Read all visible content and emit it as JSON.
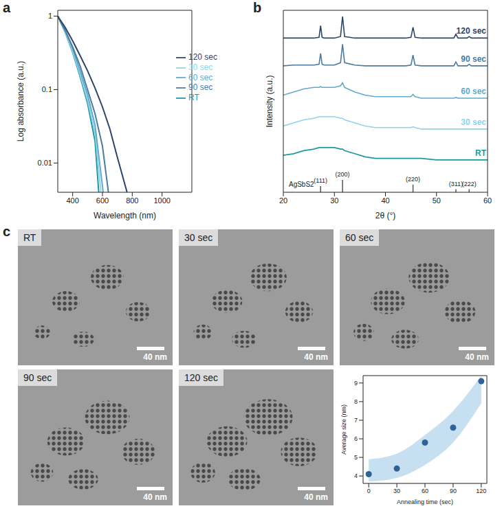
{
  "chart_data": [
    {
      "panel": "a",
      "type": "line",
      "x_label": "Wavelength (nm)",
      "y_label": "Log absorbance (a.u.)",
      "log": "y",
      "xlim": [
        300,
        1200
      ],
      "xticks": [
        400,
        600,
        800,
        1000
      ],
      "ylim": [
        0.004,
        1.2
      ],
      "yticks": [
        0.01,
        0.1,
        1
      ],
      "legend": "right",
      "series": [
        {
          "name": "RT",
          "color": "#1a9aa0",
          "x": [
            300,
            350,
            400,
            450,
            500,
            550,
            575
          ],
          "values": [
            1,
            0.6,
            0.32,
            0.15,
            0.065,
            0.02,
            0.004
          ]
        },
        {
          "name": "30 sec",
          "color": "#8fd3ea",
          "x": [
            300,
            350,
            400,
            450,
            500,
            550,
            590
          ],
          "values": [
            1,
            0.61,
            0.33,
            0.16,
            0.072,
            0.026,
            0.004
          ]
        },
        {
          "name": "60 sec",
          "color": "#62a9cc",
          "x": [
            300,
            350,
            400,
            450,
            500,
            550,
            605
          ],
          "values": [
            1,
            0.63,
            0.36,
            0.18,
            0.085,
            0.033,
            0.004
          ]
        },
        {
          "name": "90 sec",
          "color": "#4d7aa0",
          "x": [
            300,
            350,
            400,
            450,
            500,
            550,
            600,
            640
          ],
          "values": [
            1,
            0.64,
            0.38,
            0.21,
            0.1,
            0.047,
            0.017,
            0.004
          ]
        },
        {
          "name": "120 sec",
          "color": "#2d4468",
          "x": [
            300,
            350,
            400,
            450,
            500,
            550,
            600,
            650,
            700,
            765
          ],
          "values": [
            1,
            0.7,
            0.46,
            0.29,
            0.18,
            0.105,
            0.058,
            0.029,
            0.012,
            0.004
          ]
        }
      ]
    },
    {
      "panel": "b",
      "type": "line",
      "x_label": "2θ (°)",
      "y_label": "Intensity (a.u.)",
      "tick_labels": "x",
      "xlim": [
        20,
        60
      ],
      "xticks": [
        20,
        30,
        40,
        50,
        60
      ],
      "ylim": [
        0,
        118
      ],
      "x": [
        20,
        22,
        24,
        26,
        27,
        27.3,
        27.6,
        28,
        30,
        31.2,
        31.6,
        32,
        34,
        36,
        38,
        40,
        42,
        44,
        45,
        45.4,
        45.8,
        47,
        50,
        53.4,
        53.8,
        54.2,
        56,
        56.4,
        56.8,
        58,
        60
      ],
      "series": [
        {
          "name": "RT",
          "color": "#1a9aa0",
          "values": [
            24,
            25,
            27,
            28,
            29,
            29,
            29,
            29,
            29,
            28,
            28,
            27,
            25,
            23,
            22,
            22,
            22,
            22,
            22,
            22,
            22,
            22,
            21,
            21,
            21,
            21,
            21,
            21,
            21,
            21,
            21
          ]
        },
        {
          "name": "30 sec",
          "color": "#8fd3ea",
          "values": [
            43,
            45,
            47,
            48,
            49,
            49,
            49,
            49,
            49,
            48,
            48,
            47,
            45,
            43,
            42,
            42,
            42,
            42,
            42,
            42.5,
            42,
            41,
            41,
            41,
            41,
            41,
            41,
            41,
            41,
            41,
            41
          ]
        },
        {
          "name": "60 sec",
          "color": "#62a9cc",
          "values": [
            63,
            65,
            67,
            68,
            68,
            68.5,
            68,
            68,
            68,
            69,
            71,
            68,
            65,
            63,
            62,
            62,
            62,
            62,
            62,
            63.5,
            62,
            61,
            61,
            61,
            61.5,
            61,
            61,
            61,
            61,
            61,
            61
          ]
        },
        {
          "name": "90 sec",
          "color": "#4d7aa0",
          "values": [
            82,
            82.5,
            82.5,
            82.5,
            83,
            90,
            83,
            82.5,
            82.5,
            84,
            96,
            84,
            82.5,
            82,
            82,
            82,
            82,
            82,
            82.5,
            89,
            82.5,
            82,
            82,
            82,
            84.5,
            82,
            82,
            83,
            82,
            82,
            82
          ]
        },
        {
          "name": "120 sec",
          "color": "#2d4468",
          "values": [
            100,
            100,
            100,
            100,
            100.5,
            108,
            100.5,
            100,
            100,
            101,
            114,
            101,
            100,
            100,
            100,
            100,
            100,
            100,
            100.5,
            107,
            100.5,
            100,
            100,
            100,
            102.5,
            100,
            100,
            101,
            100,
            100,
            100
          ]
        }
      ],
      "reference": {
        "name": "AgSbS2",
        "x": [
          27.3,
          31.6,
          45.4,
          53.8,
          56.4
        ],
        "labels": [
          "(111)",
          "(200)",
          "(220)",
          "(311)",
          "(222)"
        ],
        "values": [
          4,
          8,
          5,
          2,
          2
        ]
      }
    },
    {
      "type": "scatter",
      "x_label": "Annealing time (sec)",
      "y_label": "Average size (nm)",
      "xlim": [
        -6,
        126
      ],
      "xticks": [
        0,
        30,
        60,
        90,
        120
      ],
      "ylim": [
        3.6,
        9.4
      ],
      "yticks": [
        4,
        5,
        6,
        7,
        8,
        9
      ],
      "color": "#2f6396",
      "x": [
        0,
        30,
        60,
        90,
        120
      ],
      "values": [
        4.1,
        4.4,
        5.8,
        6.6,
        9.1
      ],
      "band_lower": [
        3.7,
        3.9,
        4.6,
        5.8,
        7.9
      ],
      "band_upper": [
        4.9,
        5.2,
        6.2,
        7.5,
        9.4
      ]
    }
  ],
  "images": {
    "panel": "c",
    "items": [
      {
        "label": "RT",
        "scale_bar": "40 nm"
      },
      {
        "label": "30 sec",
        "scale_bar": "40 nm"
      },
      {
        "label": "60 sec",
        "scale_bar": "40 nm"
      },
      {
        "label": "90 sec",
        "scale_bar": "40 nm"
      },
      {
        "label": "120 sec",
        "scale_bar": "40 nm"
      }
    ]
  }
}
